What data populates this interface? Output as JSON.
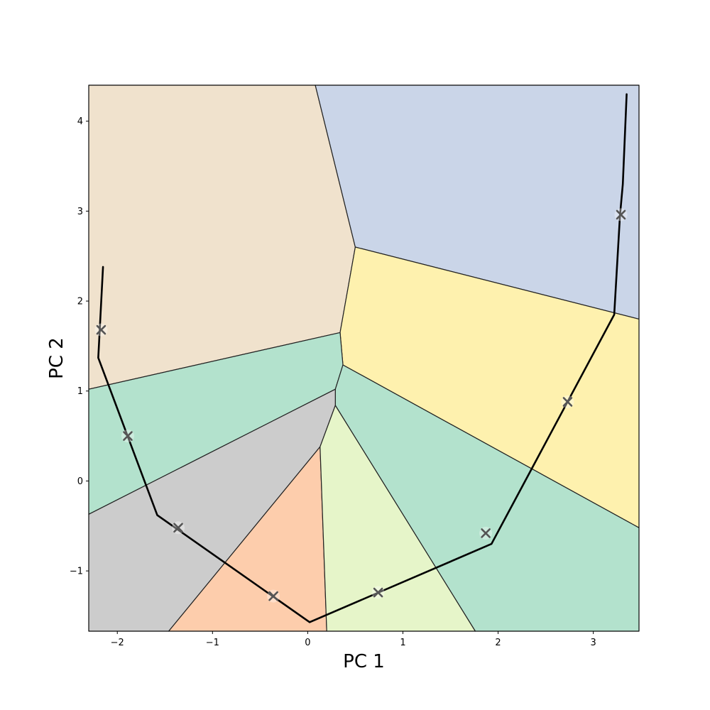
{
  "chart_data": {
    "type": "scatter",
    "title": "",
    "xlabel": "PC 1",
    "ylabel": "PC 2",
    "xlim": [
      -2.3,
      3.48
    ],
    "ylim": [
      -1.67,
      4.4
    ],
    "xticks": [
      -2,
      -1,
      0,
      1,
      2,
      3
    ],
    "yticks": [
      -1,
      0,
      1,
      2,
      3,
      4
    ],
    "xtick_labels": [
      "−2",
      "−1",
      "0",
      "1",
      "2",
      "3"
    ],
    "ytick_labels": [
      "−1",
      "0",
      "1",
      "2",
      "3",
      "4"
    ],
    "grid": false,
    "regions": [
      {
        "name": "region-tan",
        "color": "#f0e2cd",
        "polygon": [
          [
            -2.3,
            4.4
          ],
          [
            0.08,
            4.4
          ],
          [
            0.5,
            2.6
          ],
          [
            0.34,
            1.65
          ],
          [
            -2.3,
            1.02
          ]
        ]
      },
      {
        "name": "region-blue",
        "color": "#cad5e8",
        "polygon": [
          [
            0.08,
            4.4
          ],
          [
            3.48,
            4.4
          ],
          [
            3.48,
            1.8
          ],
          [
            0.5,
            2.6
          ]
        ]
      },
      {
        "name": "region-yellow",
        "color": "#fef1ae",
        "polygon": [
          [
            0.5,
            2.6
          ],
          [
            3.48,
            1.8
          ],
          [
            3.48,
            -0.52
          ],
          [
            0.37,
            1.29
          ],
          [
            0.34,
            1.65
          ]
        ]
      },
      {
        "name": "region-green-left",
        "color": "#b3e2cd",
        "polygon": [
          [
            -2.3,
            1.02
          ],
          [
            0.34,
            1.65
          ],
          [
            0.37,
            1.29
          ],
          [
            0.29,
            1.02
          ],
          [
            -2.3,
            -0.37
          ]
        ]
      },
      {
        "name": "region-green-right",
        "color": "#b3e2cd",
        "polygon": [
          [
            0.37,
            1.29
          ],
          [
            3.48,
            -0.52
          ],
          [
            3.48,
            -1.67
          ],
          [
            1.76,
            -1.67
          ],
          [
            0.29,
            0.84
          ],
          [
            0.29,
            1.02
          ]
        ]
      },
      {
        "name": "region-gray",
        "color": "#cccccc",
        "polygon": [
          [
            -2.3,
            -0.37
          ],
          [
            0.29,
            1.02
          ],
          [
            0.29,
            0.84
          ],
          [
            0.13,
            0.38
          ],
          [
            -1.46,
            -1.67
          ],
          [
            -2.3,
            -1.67
          ]
        ]
      },
      {
        "name": "region-orange",
        "color": "#fdcdac",
        "polygon": [
          [
            -1.46,
            -1.67
          ],
          [
            0.13,
            0.38
          ],
          [
            0.2,
            -1.67
          ]
        ]
      },
      {
        "name": "region-lime",
        "color": "#e6f5c9",
        "polygon": [
          [
            0.13,
            0.38
          ],
          [
            0.29,
            0.84
          ],
          [
            1.76,
            -1.67
          ],
          [
            0.2,
            -1.67
          ]
        ]
      }
    ],
    "series": [
      {
        "color": "#000000",
        "points": [
          [
            -2.15,
            2.38
          ],
          [
            -2.2,
            1.37
          ],
          [
            -1.58,
            -0.38
          ],
          [
            0.02,
            -1.57
          ],
          [
            1.93,
            -0.7
          ],
          [
            3.22,
            1.85
          ],
          [
            3.28,
            2.95
          ],
          [
            3.31,
            3.3
          ],
          [
            3.35,
            4.3
          ]
        ]
      }
    ],
    "markers": [
      {
        "label": "×",
        "x": -2.17,
        "y": 1.68
      },
      {
        "label": "×",
        "x": -1.89,
        "y": 0.5
      },
      {
        "label": "×",
        "x": -1.36,
        "y": -0.52
      },
      {
        "label": "×",
        "x": -0.36,
        "y": -1.28
      },
      {
        "label": "×",
        "x": 0.74,
        "y": -1.24
      },
      {
        "label": "×",
        "x": 1.87,
        "y": -0.58
      },
      {
        "label": "×",
        "x": 2.73,
        "y": 0.88
      },
      {
        "label": "×",
        "x": 3.29,
        "y": 2.96
      }
    ],
    "marker_color": "#555555"
  }
}
